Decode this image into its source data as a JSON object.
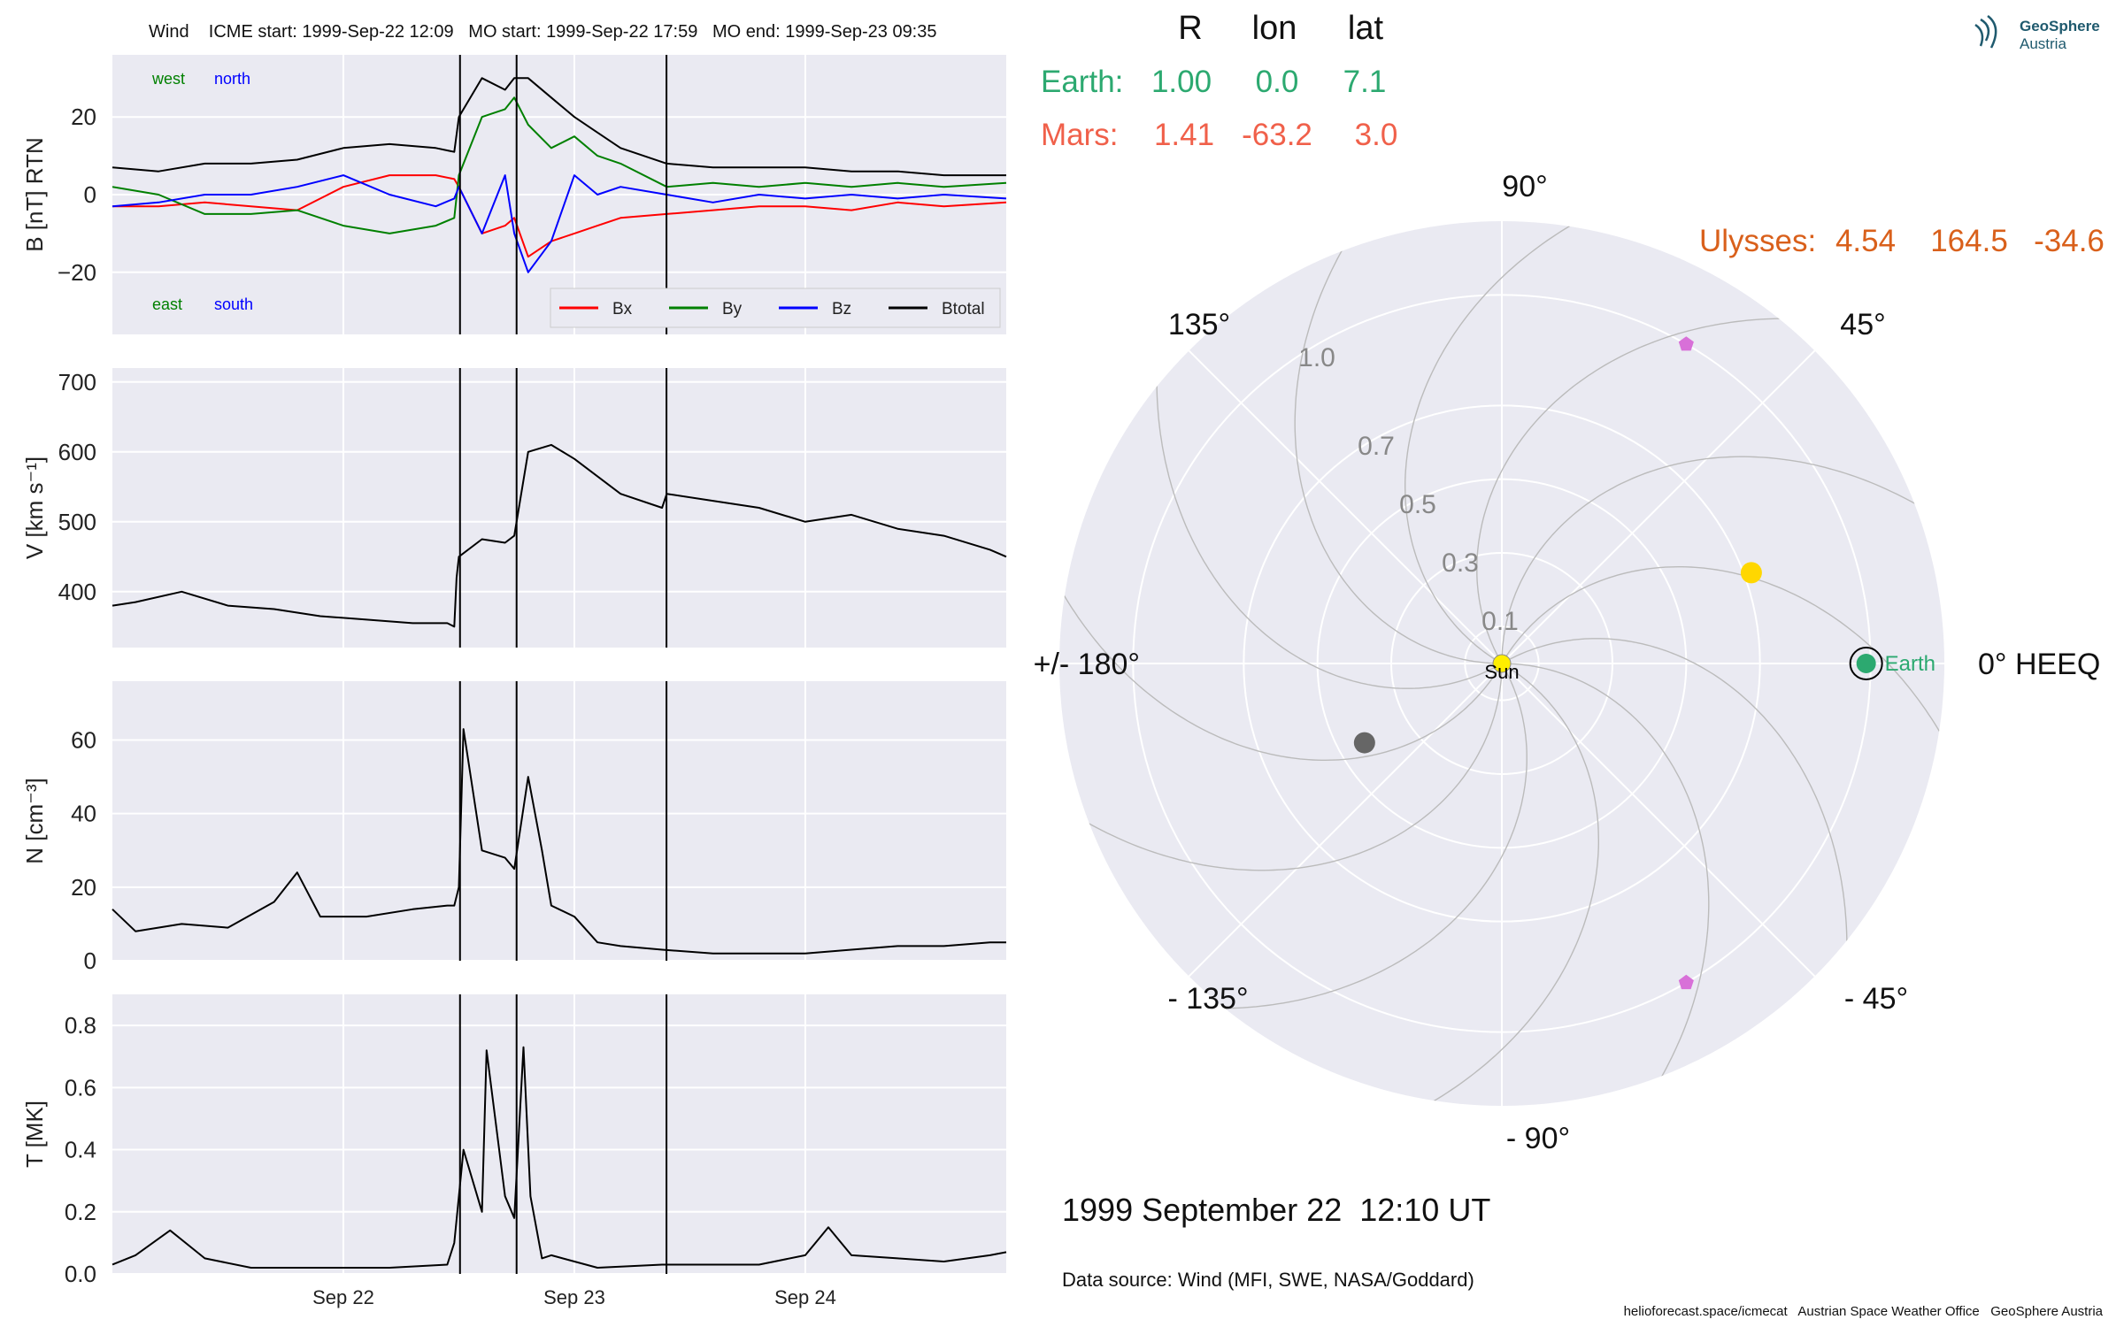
{
  "title": "Wind    ICME start: 1999-Sep-22 12:09   MO start: 1999-Sep-22 17:59   MO end: 1999-Sep-23 09:35",
  "colors": {
    "panel_bg": "#eaeaf2",
    "grid": "#ffffff",
    "bx": "#ff0000",
    "by": "#008000",
    "bz": "#0000ff",
    "btotal": "#000000",
    "earth": "#2ca970",
    "mars": "#f0604a",
    "ulysses": "#d9601b",
    "sun": "#ffee00",
    "stereo": "#ffd700",
    "psp": "#666666",
    "l5": "#d870d8"
  },
  "chart_data": [
    {
      "type": "line",
      "name": "magnetic-field",
      "ylabel": "B [nT] RTN",
      "ylim": [
        -36,
        36
      ],
      "yticks": [
        20,
        0,
        -20
      ],
      "ytick_labels": [
        "20",
        "0",
        "−20"
      ],
      "annotations": [
        "west",
        "north",
        "east",
        "south"
      ],
      "legend": [
        "Bx",
        "By",
        "Bz",
        "Btotal"
      ],
      "legend_location": "lower right",
      "series": [
        {
          "name": "Bx",
          "color": "#ff0000",
          "x": [
            0.0,
            0.2,
            0.4,
            0.6,
            0.8,
            1.0,
            1.2,
            1.4,
            1.48,
            1.5,
            1.6,
            1.7,
            1.74,
            1.8,
            1.9,
            2.0,
            2.1,
            2.2,
            2.4,
            2.6,
            2.8,
            3.0,
            3.2,
            3.4,
            3.6,
            3.87
          ],
          "y": [
            -3,
            -3,
            -2,
            -3,
            -4,
            2,
            5,
            5,
            4,
            2,
            -10,
            -8,
            -6,
            -16,
            -12,
            -10,
            -8,
            -6,
            -5,
            -4,
            -3,
            -3,
            -4,
            -2,
            -3,
            -2
          ]
        },
        {
          "name": "By",
          "color": "#008000",
          "x": [
            0.0,
            0.2,
            0.4,
            0.6,
            0.8,
            1.0,
            1.2,
            1.4,
            1.48,
            1.5,
            1.6,
            1.7,
            1.74,
            1.8,
            1.9,
            2.0,
            2.1,
            2.2,
            2.4,
            2.6,
            2.8,
            3.0,
            3.2,
            3.4,
            3.6,
            3.87
          ],
          "y": [
            2,
            0,
            -5,
            -5,
            -4,
            -8,
            -10,
            -8,
            -6,
            5,
            20,
            22,
            25,
            18,
            12,
            15,
            10,
            8,
            2,
            3,
            2,
            3,
            2,
            3,
            2,
            3
          ]
        },
        {
          "name": "Bz",
          "color": "#0000ff",
          "x": [
            0.0,
            0.2,
            0.4,
            0.6,
            0.8,
            1.0,
            1.2,
            1.4,
            1.48,
            1.5,
            1.6,
            1.7,
            1.74,
            1.8,
            1.9,
            2.0,
            2.1,
            2.2,
            2.4,
            2.6,
            2.8,
            3.0,
            3.2,
            3.4,
            3.6,
            3.87
          ],
          "y": [
            -3,
            -2,
            0,
            0,
            2,
            5,
            0,
            -3,
            -1,
            2,
            -10,
            5,
            -10,
            -20,
            -12,
            5,
            0,
            2,
            0,
            -2,
            0,
            -1,
            0,
            -1,
            0,
            -1
          ]
        },
        {
          "name": "Btotal",
          "color": "#000000",
          "x": [
            0.0,
            0.2,
            0.4,
            0.6,
            0.8,
            1.0,
            1.2,
            1.4,
            1.48,
            1.5,
            1.6,
            1.7,
            1.74,
            1.8,
            1.9,
            2.0,
            2.1,
            2.2,
            2.4,
            2.6,
            2.8,
            3.0,
            3.2,
            3.4,
            3.6,
            3.87
          ],
          "y": [
            7,
            6,
            8,
            8,
            9,
            12,
            13,
            12,
            11,
            20,
            30,
            27,
            30,
            30,
            25,
            20,
            16,
            12,
            8,
            7,
            7,
            7,
            6,
            6,
            5,
            5
          ]
        }
      ]
    },
    {
      "type": "line",
      "name": "speed",
      "ylabel": "V [km s⁻¹]",
      "ylim": [
        320,
        720
      ],
      "yticks": [
        700,
        600,
        500,
        400
      ],
      "series": [
        {
          "name": "V",
          "color": "#000000",
          "x": [
            0.0,
            0.1,
            0.3,
            0.5,
            0.7,
            0.9,
            1.1,
            1.3,
            1.45,
            1.48,
            1.49,
            1.5,
            1.6,
            1.7,
            1.74,
            1.8,
            1.9,
            2.0,
            2.2,
            2.38,
            2.4,
            2.6,
            2.8,
            3.0,
            3.2,
            3.4,
            3.6,
            3.8,
            3.87
          ],
          "y": [
            380,
            385,
            400,
            380,
            375,
            365,
            360,
            355,
            355,
            350,
            420,
            450,
            475,
            470,
            480,
            600,
            610,
            590,
            540,
            520,
            540,
            530,
            520,
            500,
            510,
            490,
            480,
            460,
            450
          ]
        }
      ]
    },
    {
      "type": "line",
      "name": "density",
      "ylabel": "N [cm⁻³]",
      "ylim": [
        0,
        76
      ],
      "yticks": [
        60,
        40,
        20,
        0
      ],
      "series": [
        {
          "name": "N",
          "color": "#000000",
          "x": [
            0.0,
            0.1,
            0.3,
            0.5,
            0.7,
            0.8,
            0.9,
            1.1,
            1.3,
            1.45,
            1.48,
            1.5,
            1.52,
            1.6,
            1.7,
            1.74,
            1.8,
            1.86,
            1.9,
            2.0,
            2.1,
            2.2,
            2.38,
            2.6,
            2.8,
            3.0,
            3.2,
            3.4,
            3.6,
            3.8,
            3.87
          ],
          "y": [
            14,
            8,
            10,
            9,
            16,
            24,
            12,
            12,
            14,
            15,
            15,
            20,
            63,
            30,
            28,
            25,
            50,
            30,
            15,
            12,
            5,
            4,
            3,
            2,
            2,
            2,
            3,
            4,
            4,
            5,
            5
          ]
        }
      ]
    },
    {
      "type": "line",
      "name": "temperature",
      "ylabel": "T [MK]",
      "ylim": [
        0,
        0.9
      ],
      "yticks": [
        0.8,
        0.6,
        0.4,
        0.2,
        0.0
      ],
      "ytick_labels": [
        "0.8",
        "0.6",
        "0.4",
        "0.2",
        "0.0"
      ],
      "series": [
        {
          "name": "T",
          "color": "#000000",
          "x": [
            0.0,
            0.1,
            0.25,
            0.4,
            0.6,
            0.8,
            1.0,
            1.2,
            1.45,
            1.48,
            1.52,
            1.6,
            1.62,
            1.7,
            1.74,
            1.78,
            1.81,
            1.86,
            1.9,
            2.1,
            2.38,
            2.6,
            2.8,
            3.0,
            3.1,
            3.2,
            3.4,
            3.6,
            3.8,
            3.87
          ],
          "y": [
            0.03,
            0.06,
            0.14,
            0.05,
            0.02,
            0.02,
            0.02,
            0.02,
            0.03,
            0.1,
            0.4,
            0.2,
            0.72,
            0.25,
            0.18,
            0.73,
            0.25,
            0.05,
            0.06,
            0.02,
            0.03,
            0.03,
            0.03,
            0.06,
            0.15,
            0.06,
            0.05,
            0.04,
            0.06,
            0.07
          ]
        }
      ]
    },
    {
      "type": "scatter",
      "name": "polar-positions",
      "projection": "polar",
      "angle_labels": [
        "90°",
        "45°",
        "0° HEEQ",
        "- 45°",
        "- 90°",
        "- 135°",
        "+/- 180°",
        "135°"
      ],
      "radial_ticks": [
        0.1,
        0.3,
        0.5,
        0.7,
        1.0
      ],
      "radial_tick_labels": [
        "0.1",
        "0.3",
        "0.5",
        "0.7",
        "1.0"
      ],
      "rmax": 1.2,
      "points": [
        {
          "label": "Sun",
          "r": 0.0,
          "lon": 0
        },
        {
          "label": "Earth",
          "r": 1.0,
          "lon": 0.0
        },
        {
          "label": "",
          "r": 0.72,
          "lon": 20
        },
        {
          "label": "",
          "r": 0.43,
          "lon": -150
        },
        {
          "label": "",
          "r": 1.0,
          "lon": 60
        },
        {
          "label": "",
          "r": 1.0,
          "lon": -60
        }
      ]
    }
  ],
  "table": {
    "headers": [
      "R",
      "lon",
      "lat"
    ],
    "rows": [
      {
        "name": "Earth:",
        "R": "1.00",
        "lon": "0.0",
        "lat": "7.1"
      },
      {
        "name": "Mars:",
        "R": "1.41",
        "lon": "-63.2",
        "lat": "3.0"
      }
    ],
    "ulysses": {
      "name": "Ulysses:",
      "R": "4.54",
      "lon": "164.5",
      "lat": "-34.6"
    }
  },
  "x_axis": {
    "ticks": [
      1.0,
      2.0,
      3.0
    ],
    "tick_labels": [
      "Sep 22",
      "Sep 23",
      "Sep 24"
    ]
  },
  "event_times": [
    1.505,
    1.75,
    2.399
  ],
  "datetime": "1999 September 22  12:10 UT",
  "data_source": "Data source: Wind (MFI, SWE, NASA/Goddard)",
  "footer": "helioforecast.space/icmecat   Austrian Space Weather Office   GeoSphere Austria",
  "logo": {
    "line1": "GeoSphere",
    "line2": "Austria"
  }
}
